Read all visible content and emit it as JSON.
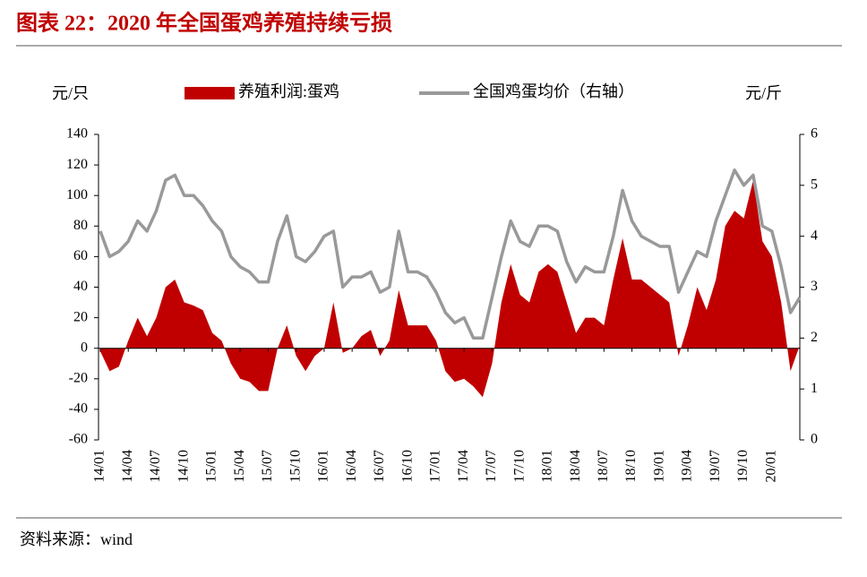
{
  "chart_data": {
    "type": "area-line",
    "title": "图表 22：2020 年全国蛋鸡养殖持续亏损",
    "y_label": "元/只",
    "y2_label": "元/斤",
    "source": "资料来源：wind",
    "categories": [
      "14/01",
      null,
      null,
      "14/04",
      null,
      null,
      "14/07",
      null,
      null,
      "14/10",
      null,
      null,
      "15/01",
      null,
      null,
      "15/04",
      null,
      null,
      "15/07",
      null,
      null,
      "15/10",
      null,
      null,
      "16/01",
      null,
      null,
      "16/04",
      null,
      null,
      "16/07",
      null,
      null,
      "16/10",
      null,
      null,
      "17/01",
      null,
      null,
      "17/04",
      null,
      null,
      "17/07",
      null,
      null,
      "17/10",
      null,
      null,
      "18/01",
      null,
      null,
      "18/04",
      null,
      null,
      "18/07",
      null,
      null,
      "18/10",
      null,
      null,
      "19/01",
      null,
      null,
      "19/04",
      null,
      null,
      "19/07",
      null,
      null,
      "19/10",
      null,
      null,
      "20/01",
      null,
      null,
      null
    ],
    "series": [
      {
        "name": "养殖利润:蛋鸡",
        "color": "#c00000",
        "axis": "y",
        "values": [
          -2,
          -15,
          -12,
          5,
          20,
          8,
          20,
          40,
          45,
          30,
          28,
          25,
          10,
          5,
          -10,
          -20,
          -22,
          -28,
          -28,
          0,
          15,
          -5,
          -15,
          -5,
          0,
          30,
          -3,
          0,
          8,
          12,
          -5,
          5,
          38,
          15,
          15,
          15,
          5,
          -15,
          -22,
          -20,
          -25,
          -32,
          -10,
          30,
          55,
          35,
          30,
          50,
          55,
          50,
          30,
          10,
          20,
          20,
          15,
          45,
          72,
          45,
          45,
          40,
          35,
          30,
          -5,
          15,
          40,
          25,
          45,
          80,
          90,
          85,
          110,
          70,
          60,
          30,
          -15,
          2
        ]
      },
      {
        "name": "全国鸡蛋均价（右轴）",
        "color": "#999999",
        "axis": "y2",
        "values": [
          4.1,
          3.6,
          3.7,
          3.9,
          4.3,
          4.1,
          4.5,
          5.1,
          5.2,
          4.8,
          4.8,
          4.6,
          4.3,
          4.1,
          3.6,
          3.4,
          3.3,
          3.1,
          3.1,
          3.9,
          4.4,
          3.6,
          3.5,
          3.7,
          4.0,
          4.1,
          3.0,
          3.2,
          3.2,
          3.3,
          2.9,
          3.0,
          4.1,
          3.3,
          3.3,
          3.2,
          2.9,
          2.5,
          2.3,
          2.4,
          2.0,
          2.0,
          2.8,
          3.6,
          4.3,
          3.9,
          3.8,
          4.2,
          4.2,
          4.1,
          3.5,
          3.1,
          3.4,
          3.3,
          3.3,
          4.0,
          4.9,
          4.3,
          4.0,
          3.9,
          3.8,
          3.8,
          2.9,
          3.3,
          3.7,
          3.6,
          4.3,
          4.8,
          5.3,
          5.0,
          5.2,
          4.2,
          4.1,
          3.4,
          2.5,
          2.8
        ]
      }
    ],
    "ylim": [
      -60,
      140
    ],
    "yticks": [
      -60,
      -40,
      -20,
      0,
      20,
      40,
      60,
      80,
      100,
      120,
      140
    ],
    "y2lim": [
      0,
      6
    ],
    "y2ticks": [
      0,
      1,
      2,
      3,
      4,
      5,
      6
    ],
    "legend": "top"
  }
}
